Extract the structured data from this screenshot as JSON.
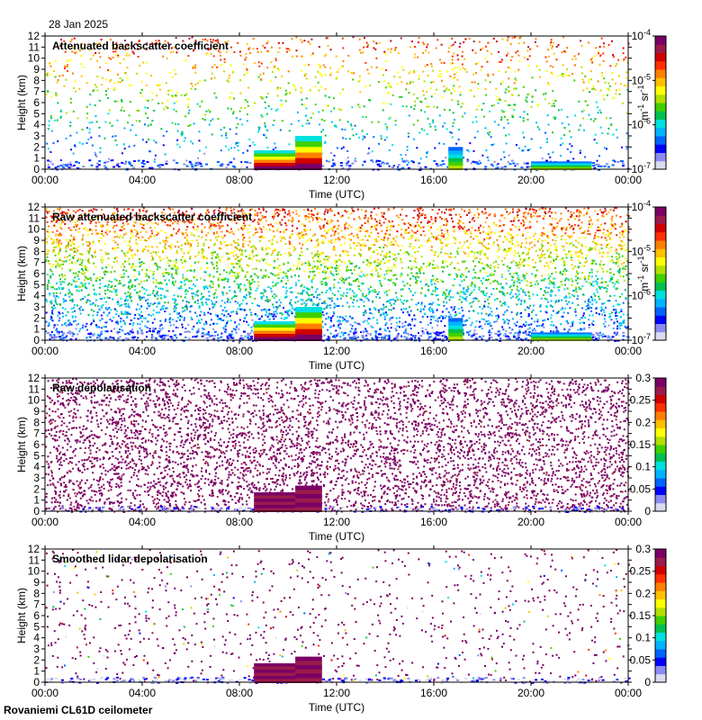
{
  "date_label": "28 Jan 2025",
  "footer_label": "Rovaniemi CL61D ceilometer",
  "colors": {
    "plot_background": "#ffffff",
    "colormap": [
      "#dcdcf0",
      "#8c8cf0",
      "#0000ff",
      "#0064ff",
      "#00b4ff",
      "#00e0e0",
      "#00c050",
      "#40d000",
      "#b4e000",
      "#ffff00",
      "#ffc000",
      "#ff8000",
      "#ff3000",
      "#d00000",
      "#9b1b4b",
      "#7a0066"
    ]
  },
  "chart_data": [
    {
      "type": "heatmap",
      "title": "Attenuated backscatter coefficient",
      "xlabel": "Time (UTC)",
      "ylabel": "Height (km)",
      "x_ticks": [
        "00:00",
        "04:00",
        "08:00",
        "12:00",
        "16:00",
        "20:00",
        "00:00"
      ],
      "y_ticks": [
        "0",
        "1",
        "2",
        "3",
        "4",
        "5",
        "6",
        "7",
        "8",
        "9",
        "10",
        "11",
        "12"
      ],
      "ylim": [
        0,
        12
      ],
      "xlim_hours": [
        0,
        24
      ],
      "colorbar": {
        "scale": "log",
        "range": [
          1e-07,
          0.0001
        ],
        "labels": [
          "10-7",
          "10-6",
          "10-5",
          "10-4"
        ],
        "unit": "m-1 sr-1"
      },
      "features": [
        {
          "t_start": 8.6,
          "t_end": 11.3,
          "height_top_km": 1.7,
          "level": "high"
        },
        {
          "t_start": 10.3,
          "t_end": 11.4,
          "height_top_km": 3.0,
          "level": "high"
        },
        {
          "t_start": 16.6,
          "t_end": 17.2,
          "height_top_km": 2.0,
          "level": "medium"
        },
        {
          "t_start": 20.0,
          "t_end": 22.5,
          "height_top_km": 0.7,
          "level": "medium"
        }
      ]
    },
    {
      "type": "heatmap",
      "title": "Raw attenuated backscatter coefficient",
      "xlabel": "Time (UTC)",
      "ylabel": "Height (km)",
      "x_ticks": [
        "00:00",
        "04:00",
        "08:00",
        "12:00",
        "16:00",
        "20:00",
        "00:00"
      ],
      "y_ticks": [
        "0",
        "1",
        "2",
        "3",
        "4",
        "5",
        "6",
        "7",
        "8",
        "9",
        "10",
        "11",
        "12"
      ],
      "ylim": [
        0,
        12
      ],
      "xlim_hours": [
        0,
        24
      ],
      "colorbar": {
        "scale": "log",
        "range": [
          1e-07,
          0.0001
        ],
        "labels": [
          "10-7",
          "10-6",
          "10-5",
          "10-4"
        ],
        "unit": "m-1 sr-1"
      },
      "features": [
        {
          "t_start": 8.6,
          "t_end": 11.3,
          "height_top_km": 1.7,
          "level": "high"
        },
        {
          "t_start": 10.3,
          "t_end": 11.4,
          "height_top_km": 3.0,
          "level": "high"
        },
        {
          "t_start": 16.6,
          "t_end": 17.2,
          "height_top_km": 2.0,
          "level": "medium"
        },
        {
          "t_start": 20.0,
          "t_end": 22.5,
          "height_top_km": 0.7,
          "level": "medium"
        }
      ]
    },
    {
      "type": "heatmap",
      "title": "Raw depolarisation",
      "xlabel": "Time (UTC)",
      "ylabel": "Height (km)",
      "x_ticks": [
        "00:00",
        "04:00",
        "08:00",
        "12:00",
        "16:00",
        "20:00",
        "00:00"
      ],
      "y_ticks": [
        "0",
        "1",
        "2",
        "3",
        "4",
        "5",
        "6",
        "7",
        "8",
        "9",
        "10",
        "11",
        "12"
      ],
      "ylim": [
        0,
        12
      ],
      "xlim_hours": [
        0,
        24
      ],
      "colorbar": {
        "scale": "linear",
        "range": [
          0,
          0.3
        ],
        "labels": [
          "0",
          "0.05",
          "0.1",
          "0.15",
          "0.2",
          "0.25",
          "0.3"
        ],
        "unit": ""
      },
      "features": [
        {
          "t_start": 8.6,
          "t_end": 11.3,
          "height_top_km": 1.7,
          "level": "high"
        },
        {
          "t_start": 10.3,
          "t_end": 11.4,
          "height_top_km": 2.3,
          "level": "high"
        }
      ]
    },
    {
      "type": "heatmap",
      "title": "Smoothed lidar depolarisation",
      "xlabel": "Time (UTC)",
      "ylabel": "Height (km)",
      "x_ticks": [
        "00:00",
        "04:00",
        "08:00",
        "12:00",
        "16:00",
        "20:00",
        "00:00"
      ],
      "y_ticks": [
        "0",
        "1",
        "2",
        "3",
        "4",
        "5",
        "6",
        "7",
        "8",
        "9",
        "10",
        "11",
        "12"
      ],
      "ylim": [
        0,
        12
      ],
      "xlim_hours": [
        0,
        24
      ],
      "colorbar": {
        "scale": "linear",
        "range": [
          0,
          0.3
        ],
        "labels": [
          "0",
          "0.05",
          "0.1",
          "0.15",
          "0.2",
          "0.25",
          "0.3"
        ],
        "unit": ""
      },
      "features": [
        {
          "t_start": 8.6,
          "t_end": 11.3,
          "height_top_km": 1.7,
          "level": "high"
        },
        {
          "t_start": 10.3,
          "t_end": 11.4,
          "height_top_km": 2.3,
          "level": "high"
        }
      ]
    }
  ]
}
